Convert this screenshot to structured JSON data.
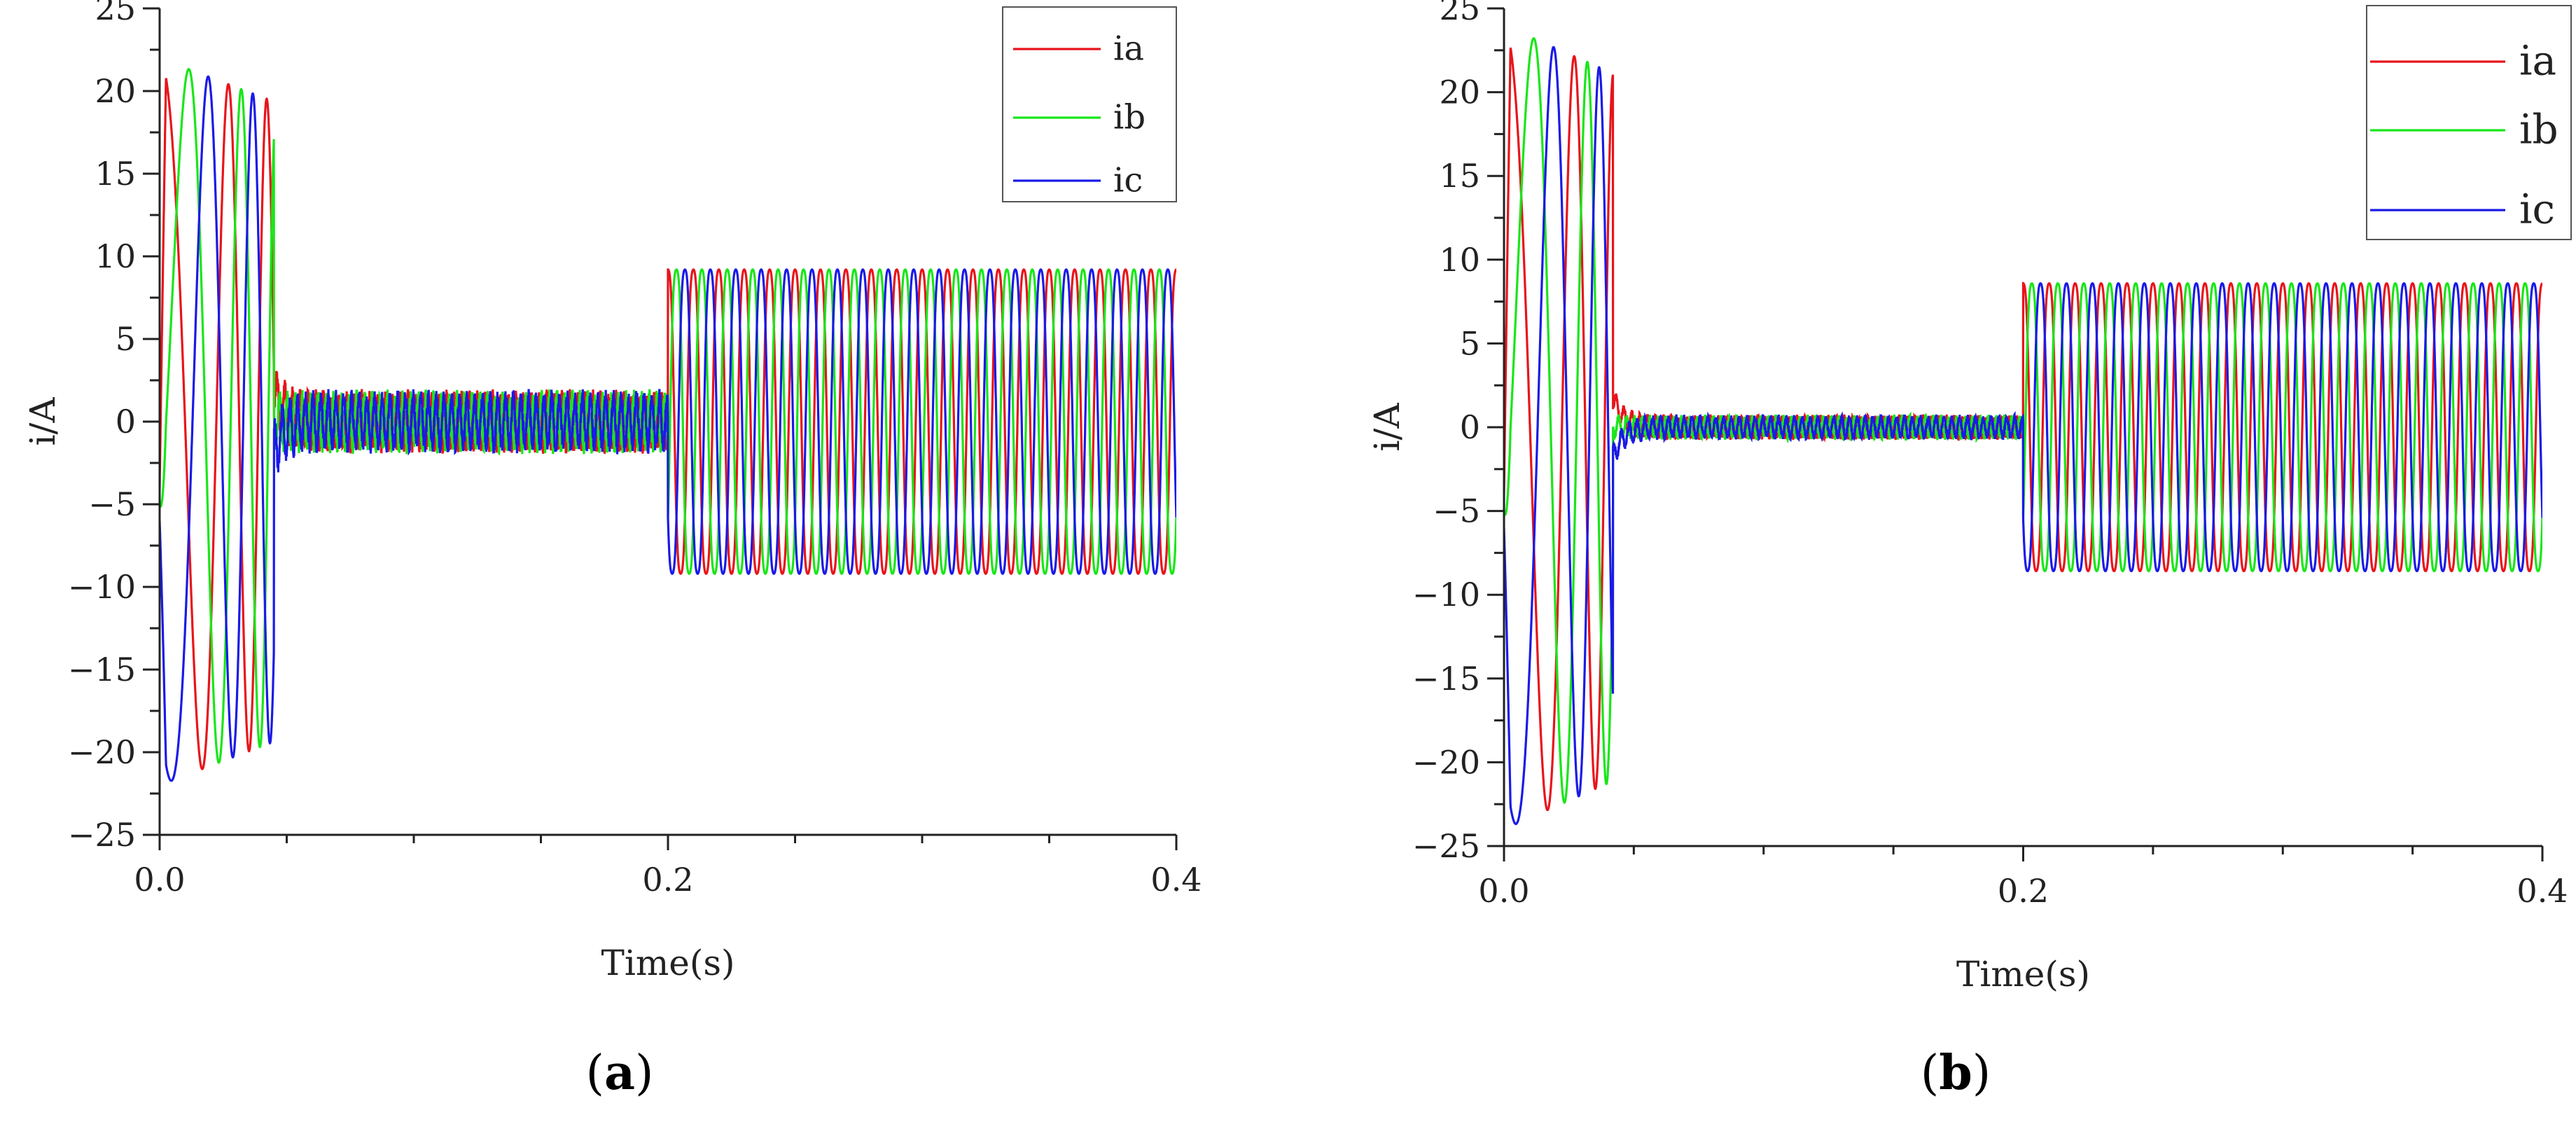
{
  "chart_data": [
    {
      "type": "line",
      "panel_label": "a",
      "xlabel": "Time(s)",
      "ylabel": "i/A",
      "xlim": [
        0,
        0.4
      ],
      "ylim": [
        -25,
        25
      ],
      "xticks": [
        0.0,
        0.2,
        0.4
      ],
      "xtick_labels": [
        "0.0",
        "0.2",
        "0.4"
      ],
      "yticks": [
        -25,
        -20,
        -15,
        -10,
        -5,
        0,
        5,
        10,
        15,
        20,
        25
      ],
      "ytick_labels": [
        "−25",
        "−20",
        "−15",
        "−10",
        "−5",
        "0",
        "5",
        "10",
        "15",
        "20",
        "25"
      ],
      "legend_position": "top-right",
      "grid": false,
      "series": [
        {
          "name": "ia",
          "color": "#e8141b"
        },
        {
          "name": "ib",
          "color": "#19e619"
        },
        {
          "name": "ic",
          "color": "#1a1ae6"
        }
      ],
      "segments": {
        "startup_end": 0.045,
        "low_load_end": 0.2,
        "startup_peak": 22,
        "low_load_amplitude": 1.8,
        "loaded_amplitude": 10.5,
        "loaded_frequency_hz": 100
      }
    },
    {
      "type": "line",
      "panel_label": "b",
      "xlabel": "Time(s)",
      "ylabel": "i/A",
      "xlim": [
        0,
        0.4
      ],
      "ylim": [
        -25,
        25
      ],
      "xticks": [
        0.0,
        0.2,
        0.4
      ],
      "xtick_labels": [
        "0.0",
        "0.2",
        "0.4"
      ],
      "yticks": [
        -25,
        -20,
        -15,
        -10,
        -5,
        0,
        5,
        10,
        15,
        20,
        25
      ],
      "ytick_labels": [
        "−25",
        "−20",
        "−15",
        "−10",
        "−5",
        "0",
        "5",
        "10",
        "15",
        "20",
        "25"
      ],
      "legend_position": "top-right",
      "grid": false,
      "series": [
        {
          "name": "ia",
          "color": "#e8141b"
        },
        {
          "name": "ib",
          "color": "#19e619"
        },
        {
          "name": "ic",
          "color": "#1a1ae6"
        }
      ],
      "segments": {
        "startup_end": 0.042,
        "low_load_end": 0.2,
        "startup_peak": 24,
        "low_load_amplitude": 0.7,
        "loaded_amplitude": 9.8,
        "loaded_frequency_hz": 100
      }
    }
  ]
}
